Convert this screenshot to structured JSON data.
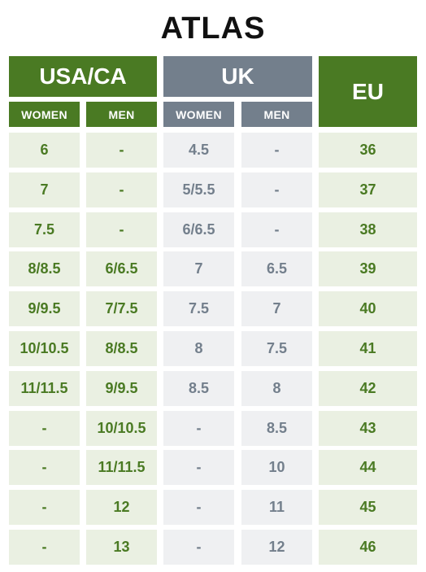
{
  "title": "ATLAS",
  "headers": {
    "usa_ca": "USA/CA",
    "uk": "UK",
    "eu": "EU",
    "usa_women": "WOMEN",
    "usa_men": "MEN",
    "uk_women": "WOMEN",
    "uk_men": "MEN"
  },
  "colors": {
    "green": "#4a7a23",
    "slate": "#737f8c",
    "green_bg": "#eaf0e2",
    "slate_bg": "#eff0f2"
  },
  "rows": [
    [
      "6",
      "-",
      "4.5",
      "-",
      "36"
    ],
    [
      "7",
      "-",
      "5/5.5",
      "-",
      "37"
    ],
    [
      "7.5",
      "-",
      "6/6.5",
      "-",
      "38"
    ],
    [
      "8/8.5",
      "6/6.5",
      "7",
      "6.5",
      "39"
    ],
    [
      "9/9.5",
      "7/7.5",
      "7.5",
      "7",
      "40"
    ],
    [
      "10/10.5",
      "8/8.5",
      "8",
      "7.5",
      "41"
    ],
    [
      "11/11.5",
      "9/9.5",
      "8.5",
      "8",
      "42"
    ],
    [
      "-",
      "10/10.5",
      "-",
      "8.5",
      "43"
    ],
    [
      "-",
      "11/11.5",
      "-",
      "10",
      "44"
    ],
    [
      "-",
      "12",
      "-",
      "11",
      "45"
    ],
    [
      "-",
      "13",
      "-",
      "12",
      "46"
    ]
  ]
}
